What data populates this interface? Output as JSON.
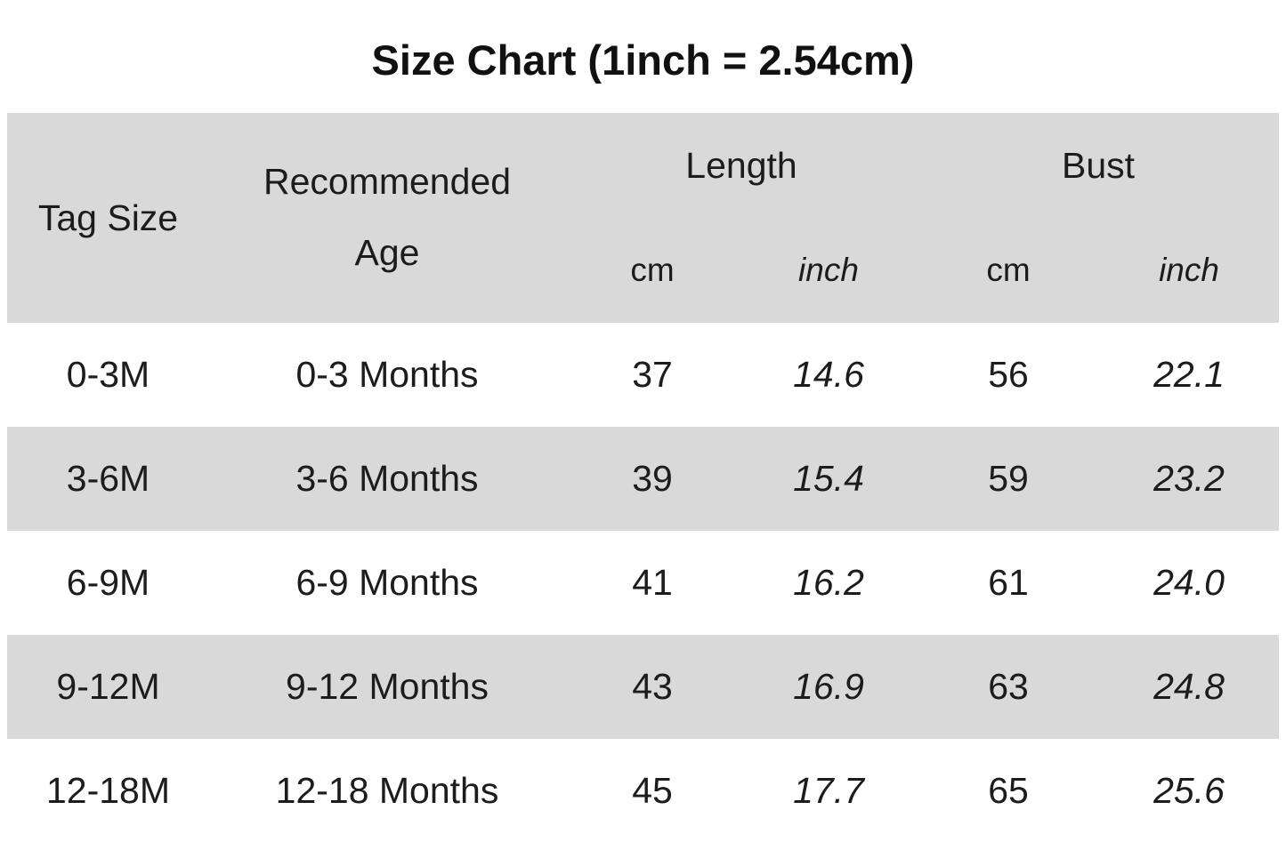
{
  "title": "Size Chart (1inch = 2.54cm)",
  "table": {
    "header": {
      "tag_size": "Tag Size",
      "recommended_age": "Recommended Age",
      "length": "Length",
      "bust": "Bust",
      "length_cm": "cm",
      "length_inch": "inch",
      "bust_cm": "cm",
      "bust_inch": "inch"
    },
    "row_fields": [
      {
        "key": "tag_size",
        "name": "cell-tag-size",
        "italic": false
      },
      {
        "key": "recommended_age",
        "name": "cell-recommended-age",
        "italic": false
      },
      {
        "key": "length_cm",
        "name": "cell-length-cm",
        "italic": false
      },
      {
        "key": "length_inch",
        "name": "cell-length-inch",
        "italic": true
      },
      {
        "key": "bust_cm",
        "name": "cell-bust-cm",
        "italic": false
      },
      {
        "key": "bust_inch",
        "name": "cell-bust-inch",
        "italic": true
      }
    ],
    "rows": [
      {
        "tag_size": "0-3M",
        "recommended_age": "0-3 Months",
        "length_cm": "37",
        "length_inch": "14.6",
        "bust_cm": "56",
        "bust_inch": "22.1"
      },
      {
        "tag_size": "3-6M",
        "recommended_age": "3-6 Months",
        "length_cm": "39",
        "length_inch": "15.4",
        "bust_cm": "59",
        "bust_inch": "23.2"
      },
      {
        "tag_size": "6-9M",
        "recommended_age": "6-9 Months",
        "length_cm": "41",
        "length_inch": "16.2",
        "bust_cm": "61",
        "bust_inch": "24.0"
      },
      {
        "tag_size": "9-12M",
        "recommended_age": "9-12 Months",
        "length_cm": "43",
        "length_inch": "16.9",
        "bust_cm": "63",
        "bust_inch": "24.8"
      },
      {
        "tag_size": "12-18M",
        "recommended_age": "12-18 Months",
        "length_cm": "45",
        "length_inch": "17.7",
        "bust_cm": "65",
        "bust_inch": "25.6"
      }
    ]
  },
  "colors": {
    "band_gray": "#d9d9d9",
    "text": "#1c1c1c",
    "background": "#ffffff"
  },
  "chart_data": {
    "type": "table",
    "title": "Size Chart (1inch = 2.54cm)",
    "columns": [
      "Tag Size",
      "Recommended Age",
      "Length cm",
      "Length inch",
      "Bust cm",
      "Bust inch"
    ],
    "rows": [
      [
        "0-3M",
        "0-3 Months",
        37,
        14.6,
        56,
        22.1
      ],
      [
        "3-6M",
        "3-6 Months",
        39,
        15.4,
        59,
        23.2
      ],
      [
        "6-9M",
        "6-9 Months",
        41,
        16.2,
        61,
        24.0
      ],
      [
        "9-12M",
        "9-12 Months",
        43,
        16.9,
        63,
        24.8
      ],
      [
        "12-18M",
        "12-18 Months",
        45,
        17.7,
        65,
        25.6
      ]
    ],
    "layout_hints": {
      "banding": "alternating rows gray #d9d9d9 starting with header band",
      "italic_columns": [
        "Length inch",
        "Bust inch"
      ],
      "grouped_headers": {
        "Length": [
          "cm",
          "inch"
        ],
        "Bust": [
          "cm",
          "inch"
        ]
      }
    }
  }
}
